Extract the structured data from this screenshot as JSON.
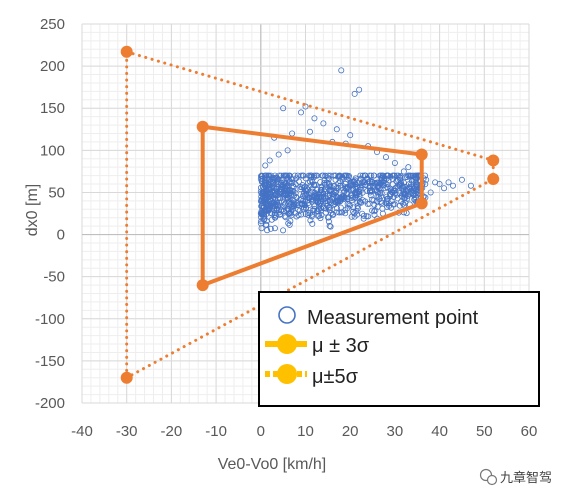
{
  "chart_data": {
    "type": "scatter",
    "xlabel": "Ve0-Vo0 [km/h]",
    "ylabel": "dx0 [m]",
    "xlim": [
      -40,
      60
    ],
    "ylim": [
      -200,
      250
    ],
    "x_ticks": [
      -40,
      -30,
      -20,
      -10,
      0,
      10,
      20,
      30,
      40,
      50,
      60
    ],
    "y_ticks": [
      -200,
      -150,
      -100,
      -50,
      0,
      50,
      100,
      150,
      200,
      250
    ],
    "grid": "major and minor",
    "legend_position": "bottom-right",
    "colors": {
      "measurement": "#4472C4",
      "bounds": "#ED7D31",
      "legend_marker": "#FFC000",
      "grid_major": "#d9d9d9",
      "grid_minor": "#eeeeee"
    },
    "series": [
      {
        "name": "Measurement point",
        "style": "hollow-circle",
        "cluster": {
          "x_range": [
            0,
            37
          ],
          "y_range": [
            5,
            70
          ],
          "count": 900
        },
        "points": [
          [
            18,
            195
          ],
          [
            21,
            167
          ],
          [
            22,
            172
          ],
          [
            5,
            150
          ],
          [
            10,
            152
          ],
          [
            9,
            145
          ],
          [
            12,
            138
          ],
          [
            14,
            132
          ],
          [
            17,
            125
          ],
          [
            20,
            118
          ],
          [
            7,
            120
          ],
          [
            3,
            115
          ],
          [
            11,
            122
          ],
          [
            16,
            110
          ],
          [
            24,
            105
          ],
          [
            28,
            92
          ],
          [
            30,
            85
          ],
          [
            2,
            88
          ],
          [
            4,
            95
          ],
          [
            26,
            98
          ],
          [
            33,
            80
          ],
          [
            32,
            75
          ],
          [
            6,
            100
          ],
          [
            19,
            108
          ],
          [
            1,
            82
          ],
          [
            35,
            70
          ],
          [
            37,
            65
          ],
          [
            39,
            62
          ],
          [
            40,
            60
          ],
          [
            43,
            58
          ],
          [
            45,
            65
          ],
          [
            47,
            58
          ],
          [
            41,
            55
          ],
          [
            38,
            50
          ],
          [
            42,
            62
          ]
        ]
      },
      {
        "name": "μ ± 3σ",
        "style": "solid",
        "vertices": [
          [
            -13,
            128
          ],
          [
            36,
            95
          ],
          [
            36,
            37
          ],
          [
            -13,
            -60
          ]
        ]
      },
      {
        "name": "μ±5σ",
        "style": "dotted",
        "vertices": [
          [
            -30,
            217
          ],
          [
            52,
            88
          ],
          [
            52,
            66
          ],
          [
            -30,
            -170
          ]
        ]
      }
    ]
  },
  "watermark": {
    "text": "九章智驾",
    "icon": "wechat-icon"
  }
}
